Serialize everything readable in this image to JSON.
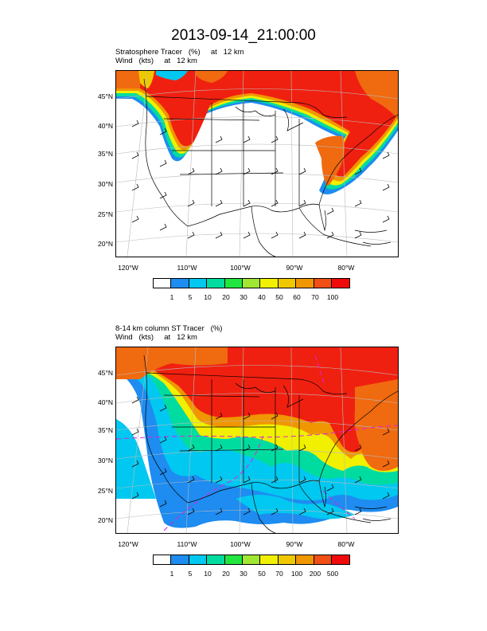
{
  "title": "2013-09-14_21:00:00",
  "panel1": {
    "field_line": "Stratosphere Tracer   (%)     at   12 km",
    "wind_line": "Wind   (kts)     at   12 km",
    "colorbar_labels": [
      "1",
      "5",
      "10",
      "20",
      "30",
      "40",
      "50",
      "60",
      "70",
      "100"
    ]
  },
  "panel2": {
    "field_line": "8-14 km column ST Tracer   (%)",
    "wind_line": "Wind   (kts)     at   12 km",
    "colorbar_labels": [
      "1",
      "5",
      "10",
      "20",
      "30",
      "50",
      "70",
      "100",
      "200",
      "500"
    ]
  },
  "lat_labels": [
    "45°N",
    "40°N",
    "35°N",
    "30°N",
    "25°N",
    "20°N"
  ],
  "lon_labels": [
    "120°W",
    "110°W",
    "100°W",
    "90°W",
    "80°W"
  ],
  "colors": {
    "scale": [
      "#ffffff",
      "#1e8cf0",
      "#00c8f0",
      "#00dca0",
      "#22e640",
      "#a0e632",
      "#f0f000",
      "#f0c800",
      "#f09600",
      "#f05014",
      "#f00a0a"
    ],
    "red": "#f02010",
    "orange": "#f06a10",
    "magenta": "#e020e0"
  }
}
